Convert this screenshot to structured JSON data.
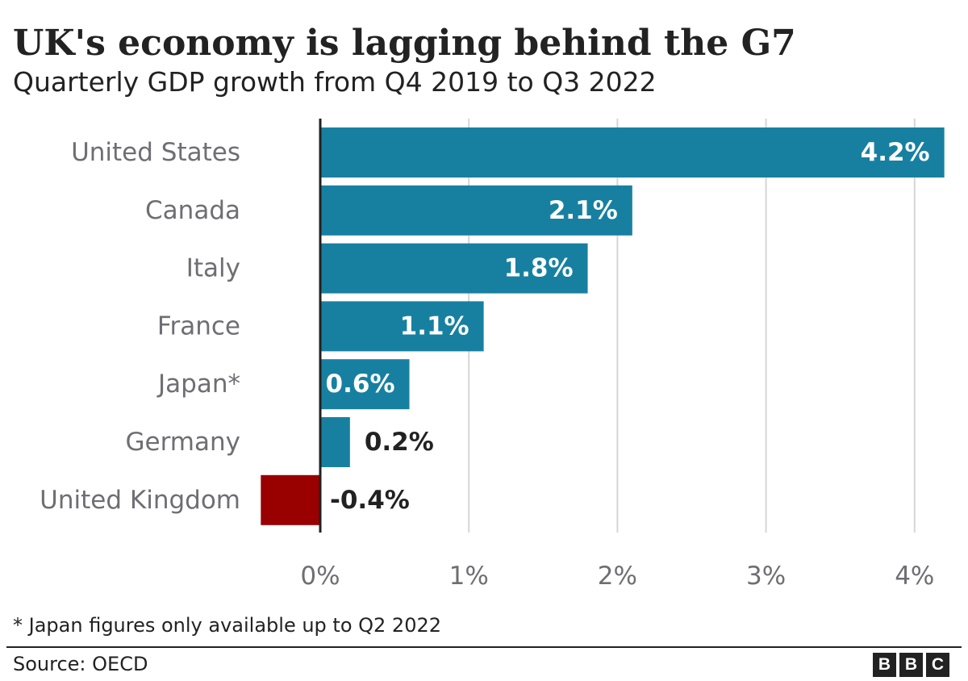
{
  "title": "UK's economy is lagging behind the G7",
  "subtitle": "Quarterly GDP growth from Q4 2019 to Q3 2022",
  "footnote": "* Japan figures only available up to Q2 2022",
  "source": "Source: OECD",
  "logo": [
    "B",
    "B",
    "C"
  ],
  "colors": {
    "positive_bar": "#1780a1",
    "negative_bar": "#990000",
    "grid": "#d6d6d6",
    "axis": "#222222",
    "category_label": "#6e6e73",
    "value_label_inside": "#ffffff",
    "value_label_outside": "#222222"
  },
  "chart_data": {
    "type": "bar",
    "orientation": "horizontal",
    "categories": [
      "United States",
      "Canada",
      "Italy",
      "France",
      "Japan*",
      "Germany",
      "United Kingdom"
    ],
    "values": [
      4.2,
      2.1,
      1.8,
      1.1,
      0.6,
      0.2,
      -0.4
    ],
    "value_labels": [
      "4.2%",
      "2.1%",
      "1.8%",
      "1.1%",
      "0.6%",
      "0.2%",
      "-0.4%"
    ],
    "bar_colors": [
      "#1780a1",
      "#1780a1",
      "#1780a1",
      "#1780a1",
      "#1780a1",
      "#1780a1",
      "#990000"
    ],
    "xlim": [
      -0.4,
      4.2
    ],
    "xticks": [
      0,
      1,
      2,
      3,
      4
    ],
    "xtick_labels": [
      "0%",
      "1%",
      "2%",
      "3%",
      "4%"
    ],
    "grid": true
  }
}
